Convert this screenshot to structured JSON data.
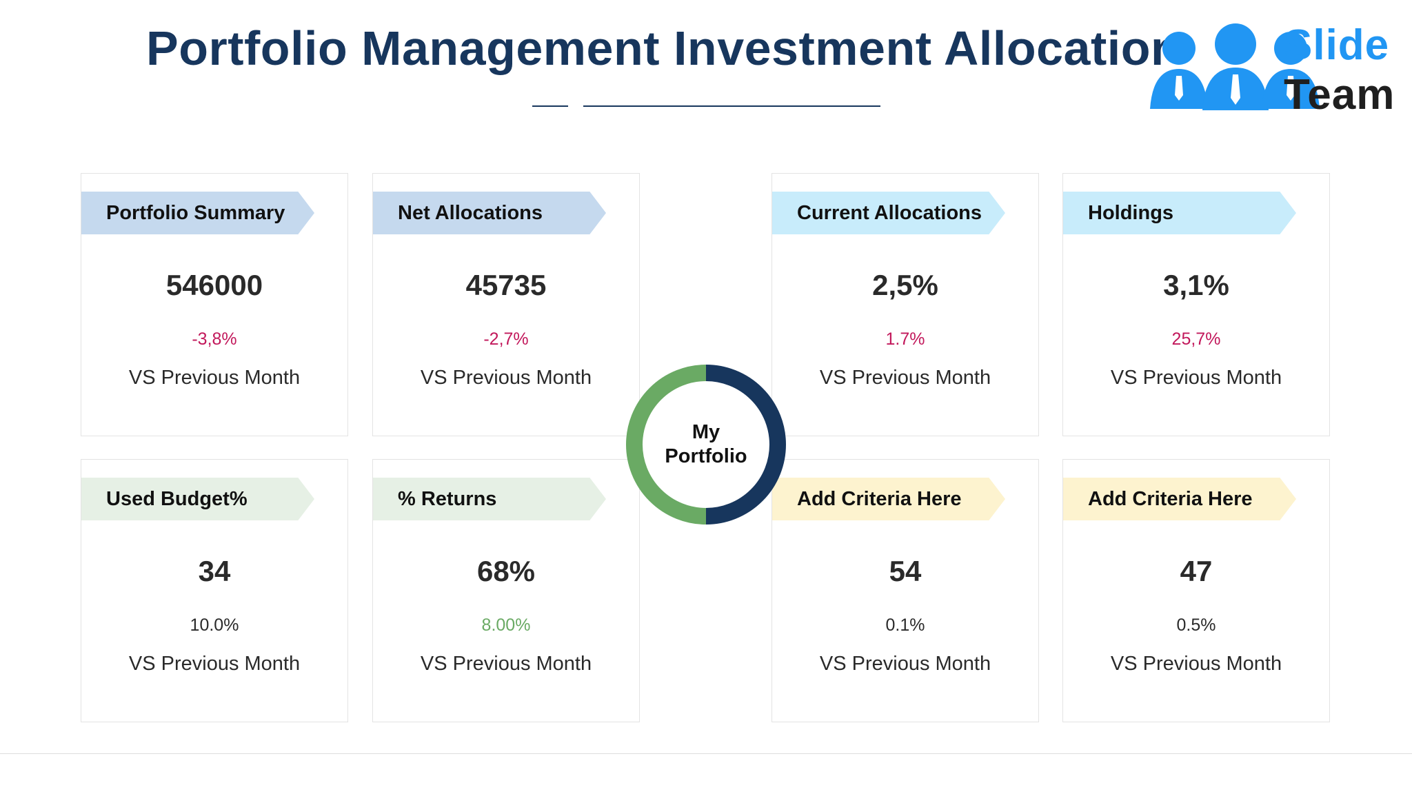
{
  "title": "Portfolio Management Investment Allocation KPI",
  "logo": {
    "word1": "Slide",
    "word2": "Team",
    "figure_color": "#2196f3"
  },
  "center": {
    "line1": "My",
    "line2": "Portfolio",
    "arc_colors": [
      "#17365d",
      "#6aaa64"
    ]
  },
  "cards": [
    {
      "label": "Portfolio Summary",
      "value": "546000",
      "delta": "-3,8%",
      "delta_color": "#c2185b",
      "caption": "VS Previous Month",
      "tag_color": "#c5d9ee"
    },
    {
      "label": "Net Allocations",
      "value": "45735",
      "delta": "-2,7%",
      "delta_color": "#c2185b",
      "caption": "VS Previous Month",
      "tag_color": "#c5d9ee"
    },
    {
      "label": "Current Allocations",
      "value": "2,5%",
      "delta": "1.7%",
      "delta_color": "#c2185b",
      "caption": "VS Previous Month",
      "tag_color": "#c8ecfb"
    },
    {
      "label": "Holdings",
      "value": "3,1%",
      "delta": "25,7%",
      "delta_color": "#c2185b",
      "caption": "VS Previous Month",
      "tag_color": "#c8ecfb"
    },
    {
      "label": "Used Budget%",
      "value": "34",
      "delta": "10.0%",
      "delta_color": "#2a2a2a",
      "caption": "VS Previous Month",
      "tag_color": "#e6f0e5"
    },
    {
      "label": "% Returns",
      "value": "68%",
      "delta": "8.00%",
      "delta_color": "#6aaa64",
      "caption": "VS Previous Month",
      "tag_color": "#e6f0e5"
    },
    {
      "label": "Add Criteria Here",
      "value": "54",
      "delta": "0.1%",
      "delta_color": "#2a2a2a",
      "caption": "VS Previous Month",
      "tag_color": "#fdf3cf"
    },
    {
      "label": "Add Criteria Here",
      "value": "47",
      "delta": "0.5%",
      "delta_color": "#2a2a2a",
      "caption": "VS Previous Month",
      "tag_color": "#fdf3cf"
    }
  ]
}
